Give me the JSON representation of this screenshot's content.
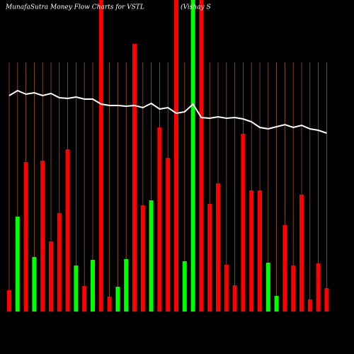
{
  "chart_data": {
    "type": "bar",
    "title": "MunafaSutra  Money Flow  Charts for VSTL",
    "subtitle": "(Vishay S",
    "values": [
      30,
      134,
      211,
      77,
      213,
      99,
      139,
      229,
      65,
      36,
      73,
      450,
      21,
      35,
      74,
      378,
      150,
      157,
      260,
      217,
      450,
      71,
      450,
      450,
      152,
      181,
      66,
      37,
      251,
      171,
      171,
      69,
      22,
      122,
      65,
      165,
      17,
      68,
      33
    ],
    "colors": [
      "#ff0000",
      "#00ff00",
      "#ff0000",
      "#00ff00",
      "#ff0000",
      "#ff0000",
      "#ff0000",
      "#ff0000",
      "#00ff00",
      "#ff0000",
      "#00ff00",
      "#ff0000",
      "#ff0000",
      "#00ff00",
      "#00ff00",
      "#ff0000",
      "#ff0000",
      "#00ff00",
      "#ff0000",
      "#ff0000",
      "#ff0000",
      "#00ff00",
      "#00ff00",
      "#ff0000",
      "#ff0000",
      "#ff0000",
      "#ff0000",
      "#ff0000",
      "#ff0000",
      "#ff0000",
      "#ff0000",
      "#00ff00",
      "#00ff00",
      "#ff0000",
      "#ff0000",
      "#ff0000",
      "#ff0000",
      "#ff0000",
      "#ff0000"
    ],
    "line": {
      "color": "#ffffff",
      "values": [
        305,
        312,
        307,
        309,
        305,
        308,
        302,
        301,
        303,
        300,
        300,
        293,
        291,
        291,
        290,
        291,
        288,
        294,
        286,
        288,
        280,
        282,
        293,
        274,
        273,
        275,
        273,
        274,
        272,
        268,
        260,
        258,
        261,
        264,
        260,
        263,
        258,
        256,
        252
      ]
    },
    "ylim": [
      0,
      440
    ]
  }
}
